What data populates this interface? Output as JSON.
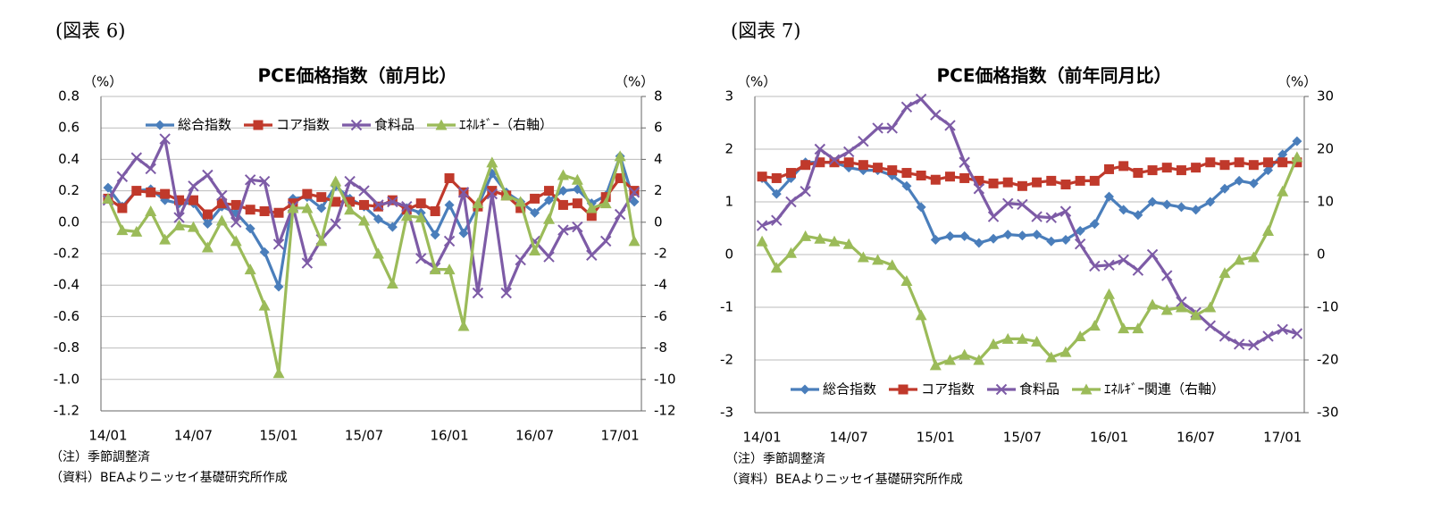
{
  "chart_data": [
    {
      "type": "line",
      "label": "(図表 6)",
      "title": "PCE価格指数（前月比）",
      "y_unit": "（%）",
      "y2_unit": "（%）",
      "categories": [
        "14/01",
        null,
        null,
        null,
        null,
        null,
        "14/07",
        null,
        null,
        null,
        null,
        null,
        "15/01",
        null,
        null,
        null,
        null,
        null,
        "15/07",
        null,
        null,
        null,
        null,
        null,
        "16/01",
        null,
        null,
        null,
        null,
        null,
        "16/07",
        null,
        null,
        null,
        null,
        null,
        "17/01",
        null
      ],
      "ylim": [
        -1.2,
        0.8
      ],
      "yticks": [
        0.8,
        0.6,
        0.4,
        0.2,
        {
          "value": 0,
          "label": "0.0"
        },
        -0.2,
        -0.4,
        -0.6,
        -0.8,
        {
          "value": -1,
          "label": "-1.0"
        },
        -1.2
      ],
      "y2lim": [
        -12,
        8
      ],
      "y2ticks": [
        8,
        6,
        4,
        2,
        0,
        -2,
        -4,
        -6,
        -8,
        -10,
        -12
      ],
      "grid": true,
      "legend": "top",
      "series": [
        {
          "name": "総合指数",
          "color": "#4a7ebb",
          "marker": "diamond",
          "values": [
            0.22,
            0.1,
            0.2,
            0.21,
            0.14,
            0.12,
            0.12,
            -0.01,
            0.1,
            0.06,
            -0.04,
            -0.19,
            -0.41,
            0.15,
            0.16,
            0.09,
            0.23,
            0.15,
            0.1,
            0.02,
            -0.03,
            0.09,
            0.06,
            -0.08,
            0.11,
            -0.07,
            0.1,
            0.31,
            0.19,
            0.13,
            0.06,
            0.14,
            0.2,
            0.21,
            0.12,
            0.17,
            0.42,
            0.13
          ]
        },
        {
          "name": "コア指数",
          "color": "#c0392b",
          "marker": "square",
          "values": [
            0.15,
            0.09,
            0.2,
            0.19,
            0.18,
            0.14,
            0.14,
            0.05,
            0.12,
            0.11,
            0.08,
            0.07,
            0.06,
            0.12,
            0.18,
            0.16,
            0.13,
            0.13,
            0.11,
            0.1,
            0.14,
            0.08,
            0.12,
            0.07,
            0.28,
            0.19,
            0.1,
            0.2,
            0.17,
            0.09,
            0.15,
            0.2,
            0.11,
            0.12,
            0.04,
            0.16,
            0.28,
            0.2
          ]
        },
        {
          "name": "食料品",
          "color": "#7d5ba6",
          "marker": "x",
          "values": [
            0.14,
            0.29,
            0.41,
            0.34,
            0.53,
            0.03,
            0.23,
            0.3,
            0.17,
            0.0,
            0.27,
            0.26,
            -0.14,
            0.1,
            -0.26,
            -0.11,
            -0.01,
            0.26,
            0.2,
            0.11,
            0.13,
            0.1,
            -0.23,
            -0.29,
            -0.12,
            0.19,
            -0.45,
            0.18,
            -0.45,
            -0.24,
            -0.12,
            -0.22,
            -0.05,
            -0.03,
            -0.21,
            -0.12,
            0.05,
            0.19
          ]
        },
        {
          "name": "ｴﾈﾙｷﾞｰ（右軸）",
          "color": "#9bbb59",
          "marker": "triangle",
          "axis": "y2",
          "values": [
            1.5,
            -0.5,
            -0.6,
            0.7,
            -1.1,
            -0.2,
            -0.3,
            -1.6,
            0.1,
            -1.2,
            -3.0,
            -5.3,
            -9.6,
            0.9,
            0.9,
            -1.2,
            2.6,
            0.8,
            0.1,
            -2.0,
            -3.9,
            0.4,
            0.3,
            -3.0,
            -3.0,
            -6.6,
            1.2,
            3.8,
            1.7,
            1.3,
            -1.8,
            0.2,
            3.0,
            2.7,
            0.9,
            1.2,
            4.2,
            -1.2
          ]
        }
      ],
      "notes": [
        "（注）季節調整済",
        "（資料）BEAよりニッセイ基礎研究所作成"
      ]
    },
    {
      "type": "line",
      "label": "(図表 7)",
      "title": "PCE価格指数（前年同月比）",
      "y_unit": "（%）",
      "y2_unit": "（%）",
      "categories": [
        "14/01",
        null,
        null,
        null,
        null,
        null,
        "14/07",
        null,
        null,
        null,
        null,
        null,
        "15/01",
        null,
        null,
        null,
        null,
        null,
        "15/07",
        null,
        null,
        null,
        null,
        null,
        "16/01",
        null,
        null,
        null,
        null,
        null,
        "16/07",
        null,
        null,
        null,
        null,
        null,
        "17/01",
        null
      ],
      "ylim": [
        -3,
        3
      ],
      "yticks": [
        3,
        2,
        1,
        0,
        -1,
        -2,
        -3
      ],
      "y2lim": [
        -30,
        30
      ],
      "y2ticks": [
        30,
        20,
        10,
        0,
        -10,
        -20,
        -30
      ],
      "grid": true,
      "legend": "bottom",
      "series": [
        {
          "name": "総合指数",
          "color": "#4a7ebb",
          "marker": "diamond",
          "values": [
            1.45,
            1.15,
            1.45,
            1.75,
            1.75,
            1.75,
            1.65,
            1.6,
            1.6,
            1.5,
            1.3,
            0.9,
            0.28,
            0.35,
            0.35,
            0.22,
            0.3,
            0.38,
            0.36,
            0.38,
            0.25,
            0.28,
            0.45,
            0.58,
            1.1,
            0.85,
            0.75,
            1.0,
            0.95,
            0.9,
            0.85,
            1.0,
            1.25,
            1.4,
            1.35,
            1.6,
            1.9,
            2.15
          ]
        },
        {
          "name": "コア指数",
          "color": "#c0392b",
          "marker": "square",
          "values": [
            1.48,
            1.45,
            1.55,
            1.7,
            1.75,
            1.75,
            1.75,
            1.7,
            1.65,
            1.6,
            1.55,
            1.5,
            1.42,
            1.48,
            1.45,
            1.4,
            1.35,
            1.37,
            1.3,
            1.37,
            1.4,
            1.33,
            1.4,
            1.4,
            1.62,
            1.68,
            1.55,
            1.6,
            1.65,
            1.6,
            1.65,
            1.75,
            1.7,
            1.75,
            1.7,
            1.75,
            1.75,
            1.75
          ]
        },
        {
          "name": "食料品",
          "color": "#7d5ba6",
          "marker": "x",
          "values": [
            0.55,
            0.65,
            1.0,
            1.2,
            2.0,
            1.8,
            1.95,
            2.15,
            2.4,
            2.4,
            2.8,
            2.95,
            2.65,
            2.45,
            1.75,
            1.25,
            0.72,
            0.97,
            0.95,
            0.72,
            0.7,
            0.82,
            0.2,
            -0.22,
            -0.2,
            -0.1,
            -0.3,
            0.0,
            -0.4,
            -0.9,
            -1.1,
            -1.35,
            -1.55,
            -1.7,
            -1.72,
            -1.55,
            -1.42,
            -1.5
          ]
        },
        {
          "name": "ｴﾈﾙｷﾞｰ関連（右軸）",
          "color": "#9bbb59",
          "marker": "triangle",
          "axis": "y2",
          "values": [
            2.5,
            -2.5,
            0.3,
            3.5,
            3.0,
            2.5,
            2.0,
            -0.5,
            -1.0,
            -2.0,
            -5.0,
            -11.5,
            -21,
            -20,
            -19,
            -20,
            -17,
            -16,
            -16,
            -16.5,
            -19.5,
            -18.5,
            -15.5,
            -13.5,
            -7.5,
            -14,
            -14,
            -9.5,
            -10.5,
            -10,
            -11.5,
            -10,
            -3.5,
            -1,
            -0.5,
            4.5,
            12,
            18.5
          ]
        }
      ],
      "notes": [
        "（注）季節調整済",
        "（資料）BEAよりニッセイ基礎研究所作成"
      ]
    }
  ]
}
